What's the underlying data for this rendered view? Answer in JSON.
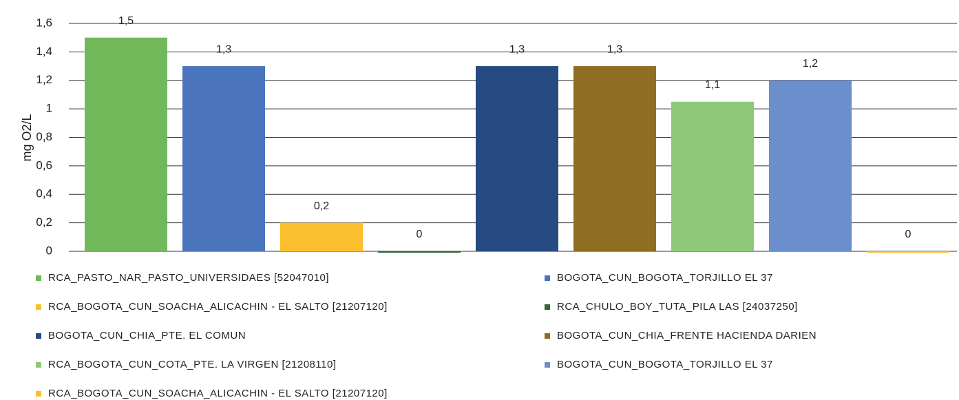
{
  "chart_data": {
    "type": "bar",
    "y_label": "mg O2/L",
    "ylim": [
      0,
      1.6
    ],
    "yticks": [
      0,
      {
        "value": 0.2,
        "label": "0,2"
      },
      {
        "value": 0.4,
        "label": "0,4"
      },
      {
        "value": 0.6,
        "label": "0,6"
      },
      {
        "value": 0.8,
        "label": "0,8"
      },
      1,
      {
        "value": 1.2,
        "label": "1,2"
      },
      {
        "value": 1.4,
        "label": "1,4"
      },
      {
        "value": 1.6,
        "label": "1,6"
      }
    ],
    "grid": true,
    "series": [
      {
        "name": "RCA_PASTO_NAR_PASTO_UNIVERSIDAES [52047010]",
        "color": "#70b85a",
        "values": [
          1.5
        ],
        "value_labels": [
          "1,5"
        ]
      },
      {
        "name": "BOGOTA_CUN_BOGOTA_TORJILLO EL 37",
        "color": "#4a75bd",
        "values": [
          1.3
        ],
        "value_labels": [
          "1,3"
        ]
      },
      {
        "name": "RCA_BOGOTA_CUN_SOACHA_ALICACHIN - EL SALTO [21207120]",
        "color": "#fbbf2d",
        "values": [
          0.2
        ],
        "value_labels": [
          "0,2"
        ]
      },
      {
        "name": "RCA_CHULO_BOY_TUTA_PILA LAS [24037250]",
        "color": "#2e6b2a",
        "values": [
          0
        ]
      },
      {
        "name": "BOGOTA_CUN_CHIA_PTE. EL COMUN",
        "color": "#264a82",
        "values": [
          1.3
        ],
        "value_labels": [
          "1,3"
        ]
      },
      {
        "name": "BOGOTA_CUN_CHIA_FRENTE HACIENDA DARIEN",
        "color": "#8f6e22",
        "values": [
          1.3
        ],
        "value_labels": [
          "1,3"
        ]
      },
      {
        "name": "RCA_BOGOTA_CUN_COTA_PTE. LA VIRGEN [21208110]",
        "color": "#8cc878",
        "values": [
          1.05
        ],
        "value_labels": [
          "1,1"
        ]
      },
      {
        "name": "BOGOTA_CUN_BOGOTA_TORJILLO EL 37",
        "color": "#6a8fcc",
        "values": [
          1.2
        ],
        "value_labels": [
          "1,2"
        ]
      },
      {
        "name": "RCA_BOGOTA_CUN_SOACHA_ALICACHIN - EL SALTO [21207120]",
        "color": "#fbbf2d",
        "values": [
          0
        ]
      }
    ]
  }
}
